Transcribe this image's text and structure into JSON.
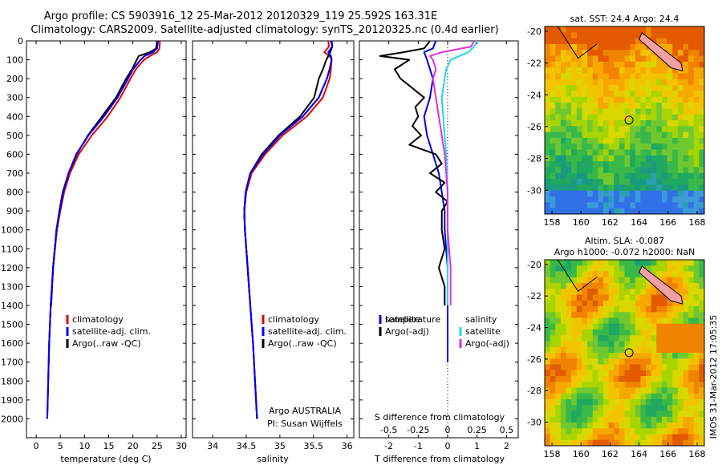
{
  "chart_data": {
    "type": "line",
    "title_line1": "Argo profile: CS 5903916_12 25-Mar-2012 20120329_119 25.592S 163.31E",
    "title_line2": "Climatology: CARS2009. Satellite-adjusted climatology: synTS_20120325.nc (0.4d earlier)",
    "stamp": "IMOS 31-Mar-2012 17:05:35",
    "colors": {
      "climatology": "#e00000",
      "satellite": "#0000ee",
      "argo": "#000000",
      "sat_salinity": "#22d8e6",
      "argo_salinity": "#e030e0"
    },
    "depth_axis": {
      "range": [
        0,
        2100
      ],
      "ticks": [
        0,
        100,
        200,
        300,
        400,
        500,
        600,
        700,
        800,
        900,
        1000,
        1100,
        1200,
        1300,
        1400,
        1500,
        1600,
        1700,
        1800,
        1900,
        2000
      ]
    },
    "temperature_panel": {
      "xlabel": "temperature (deg C)",
      "xlim": [
        -2,
        31
      ],
      "xticks": [
        0,
        5,
        10,
        15,
        20,
        25,
        30
      ],
      "legend": [
        "climatology",
        "satellite-adj. clim.",
        "Argo(..raw -QC)"
      ],
      "series": [
        {
          "name": "climatology",
          "depth": [
            0,
            40,
            60,
            80,
            100,
            150,
            200,
            300,
            400,
            500,
            600,
            700,
            800,
            900,
            1000,
            1200,
            1400,
            1600,
            1800,
            2000
          ],
          "values": [
            25.6,
            25.5,
            25.0,
            23.5,
            22.3,
            20.6,
            19.5,
            17.4,
            14.8,
            11.5,
            8.8,
            7.0,
            5.8,
            5.0,
            4.3,
            3.5,
            3.0,
            2.7,
            2.5,
            2.3
          ]
        },
        {
          "name": "satellite-adj. clim.",
          "depth": [
            0,
            40,
            60,
            80,
            100,
            150,
            200,
            300,
            400,
            500,
            600,
            700,
            800,
            900,
            1000,
            1200,
            1400,
            1600,
            1800,
            2000
          ],
          "values": [
            25.2,
            25.0,
            24.2,
            22.4,
            21.6,
            20.0,
            19.0,
            16.8,
            14.0,
            10.8,
            8.3,
            6.7,
            5.6,
            4.9,
            4.2,
            3.5,
            3.0,
            2.7,
            2.5,
            2.3
          ]
        },
        {
          "name": "Argo(..raw -QC)",
          "depth": [
            0,
            40,
            60,
            80,
            100,
            150,
            200,
            300,
            400,
            500,
            600,
            700,
            800,
            900,
            1000,
            1200,
            1400
          ],
          "values": [
            25.0,
            24.8,
            23.5,
            21.2,
            20.8,
            19.8,
            18.6,
            16.5,
            13.6,
            10.7,
            8.4,
            6.7,
            5.5,
            4.8,
            4.2,
            3.5,
            3.1
          ]
        }
      ]
    },
    "salinity_panel": {
      "xlabel": "salinity",
      "xlim": [
        33.7,
        36.1
      ],
      "xticks": [
        34,
        34.5,
        35,
        35.5,
        36
      ],
      "legend": [
        "climatology",
        "satellite-adj. clim.",
        "Argo(..raw -QC)"
      ],
      "credits": [
        "Argo AUSTRALIA",
        "PI: Susan Wijffels"
      ],
      "series": [
        {
          "name": "climatology",
          "depth": [
            0,
            30,
            60,
            80,
            100,
            150,
            200,
            300,
            400,
            500,
            600,
            700,
            800,
            900,
            1000,
            1200,
            1400,
            1600,
            1800,
            2000
          ],
          "values": [
            35.72,
            35.73,
            35.66,
            35.74,
            35.77,
            35.76,
            35.74,
            35.64,
            35.4,
            35.04,
            34.78,
            34.58,
            34.5,
            34.47,
            34.48,
            34.52,
            34.56,
            34.6,
            34.63,
            34.66
          ]
        },
        {
          "name": "satellite-adj. clim.",
          "depth": [
            0,
            30,
            60,
            80,
            100,
            150,
            200,
            300,
            400,
            500,
            600,
            700,
            800,
            900,
            1000,
            1200,
            1400,
            1600,
            1800,
            2000
          ],
          "values": [
            35.76,
            35.78,
            35.72,
            35.76,
            35.77,
            35.74,
            35.7,
            35.58,
            35.34,
            35.0,
            34.75,
            34.56,
            34.49,
            34.47,
            34.48,
            34.52,
            34.56,
            34.6,
            34.63,
            34.66
          ]
        },
        {
          "name": "Argo(..raw -QC)",
          "depth": [
            0,
            30,
            60,
            80,
            100,
            150,
            200,
            300,
            400,
            500,
            600,
            700,
            800,
            900,
            1000,
            1200,
            1400
          ],
          "values": [
            35.77,
            35.78,
            35.75,
            35.72,
            35.69,
            35.64,
            35.58,
            35.51,
            35.3,
            34.98,
            34.73,
            34.56,
            34.49,
            34.47,
            34.48,
            34.52,
            34.56
          ]
        }
      ]
    },
    "difference_panel": {
      "xlabel": "T difference from climatology",
      "xlabel_top": "S difference from climatology",
      "xlim": [
        -3,
        2.4
      ],
      "xticks": [
        -2,
        -1,
        0,
        1,
        2
      ],
      "s_ticks": [
        "-0.5",
        "-0.25",
        "0",
        "0.25",
        "0.5"
      ],
      "s_tick_positions": [
        -2,
        -1,
        0,
        1,
        2
      ],
      "legend_temperature": [
        "temperature",
        "satellite",
        "Argo(-adj)"
      ],
      "legend_salinity": [
        "salinity",
        "satellite",
        "Argo(-adj)"
      ],
      "series": [
        {
          "name": "T satellite",
          "depth": [
            0,
            40,
            60,
            100,
            150,
            200,
            300,
            400,
            500,
            600,
            700,
            800,
            900,
            1000,
            1200,
            1400,
            1600,
            1700
          ],
          "values": [
            -0.4,
            -0.5,
            -0.8,
            -0.7,
            -0.6,
            -0.5,
            -0.6,
            -0.8,
            -0.7,
            -0.5,
            -0.3,
            -0.2,
            -0.1,
            -0.1,
            0.0,
            0.0,
            0.0,
            0.0
          ]
        },
        {
          "name": "T Argo(-adj)",
          "depth": [
            0,
            40,
            60,
            80,
            100,
            150,
            200,
            250,
            300,
            350,
            400,
            450,
            500,
            550,
            600,
            650,
            700,
            750,
            800,
            850,
            900,
            1000,
            1100,
            1200,
            1300,
            1400
          ],
          "values": [
            -0.6,
            -0.8,
            -1.5,
            -2.3,
            -1.3,
            -1.8,
            -1.6,
            -1.2,
            -0.8,
            -1.1,
            -1.0,
            -1.2,
            -0.9,
            -1.3,
            -0.4,
            -0.2,
            -0.6,
            -0.1,
            -0.4,
            0.0,
            -0.2,
            -0.2,
            -0.1,
            -0.3,
            -0.1,
            -0.1
          ]
        },
        {
          "name": "S satellite",
          "depth": [
            0,
            30,
            60,
            80,
            100,
            150,
            200,
            300,
            400,
            500,
            600,
            800,
            1000,
            1200,
            1400
          ],
          "values": [
            1.0,
            0.9,
            0.7,
            0.4,
            0.1,
            -0.05,
            -0.1,
            -0.2,
            -0.15,
            -0.1,
            -0.05,
            0.0,
            0.0,
            0.0,
            0.0
          ]
        },
        {
          "name": "S Argo(-adj)",
          "depth": [
            0,
            30,
            60,
            80,
            100,
            150,
            200,
            300,
            400,
            500,
            600,
            800,
            1000,
            1200,
            1400
          ],
          "values": [
            0.9,
            0.8,
            -0.2,
            -0.6,
            -0.5,
            -0.4,
            -0.5,
            -0.4,
            -0.3,
            -0.2,
            -0.1,
            0.0,
            0.0,
            0.1,
            0.1
          ]
        }
      ]
    },
    "maps": [
      {
        "title": "sat. SST: 24.4  Argo: 24.4",
        "xticks": [
          "158",
          "160",
          "162",
          "164",
          "166",
          "168"
        ],
        "yticks": [
          "-20",
          "-22",
          "-24",
          "-26",
          "-28",
          "-30"
        ],
        "lon_range": [
          157.5,
          168.5
        ],
        "lat_range": [
          -31.5,
          -19.7
        ],
        "argo_position": [
          163.31,
          -25.592
        ]
      },
      {
        "title_line1": "Altim. SLA: -0.087",
        "title_line2": "Argo h1000: -0.072 h2000: NaN",
        "xticks": [
          "158",
          "160",
          "162",
          "164",
          "166",
          "168"
        ],
        "yticks": [
          "-20",
          "-22",
          "-24",
          "-26",
          "-28",
          "-30"
        ],
        "lon_range": [
          157.5,
          168.5
        ],
        "lat_range": [
          -31.5,
          -19.7
        ],
        "argo_position": [
          163.31,
          -25.592
        ]
      }
    ]
  }
}
